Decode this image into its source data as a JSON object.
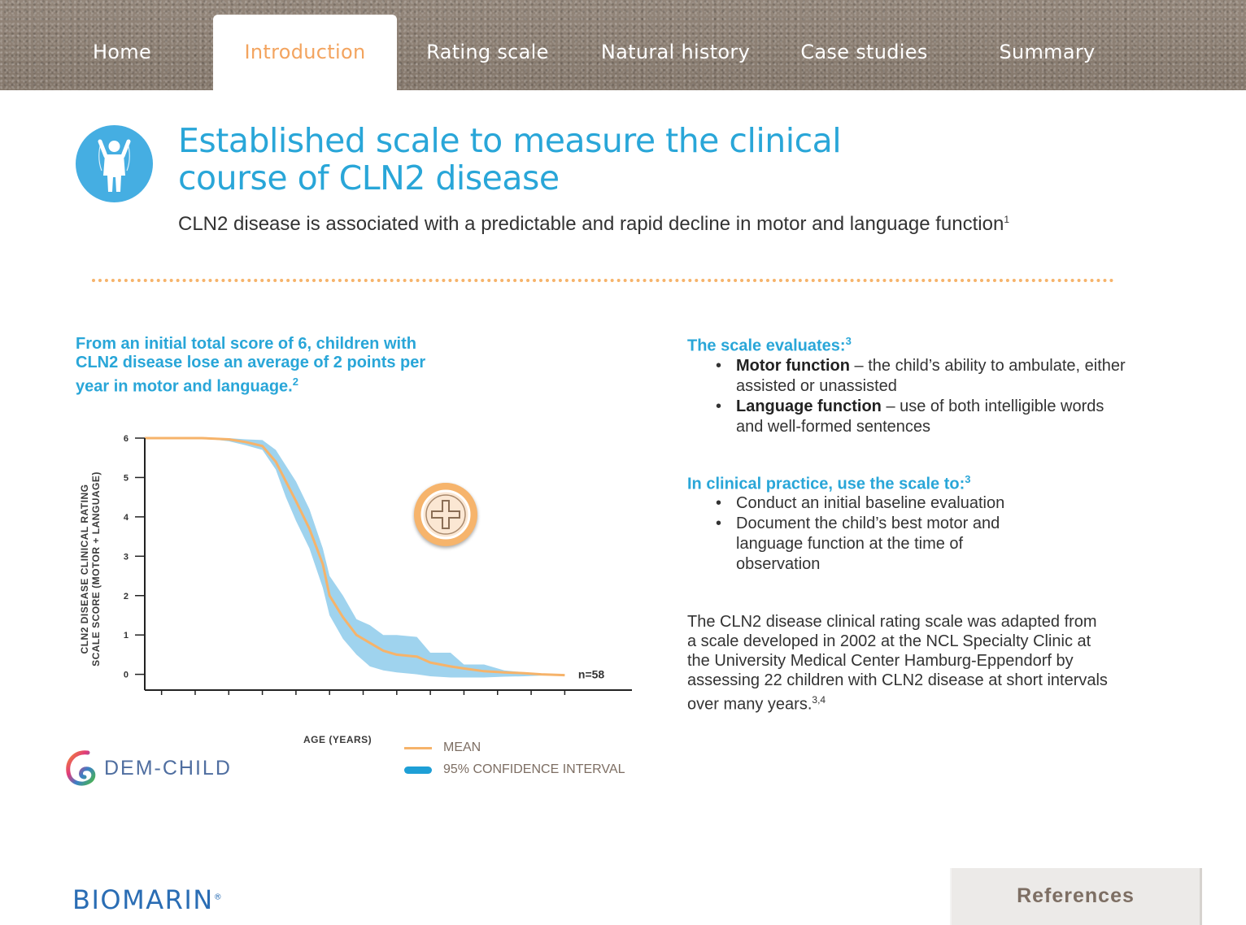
{
  "nav": {
    "tabs": [
      {
        "label": "Home",
        "active": false
      },
      {
        "label": "Introduction",
        "active": true
      },
      {
        "label": "Rating scale",
        "active": false
      },
      {
        "label": "Natural history",
        "active": false
      },
      {
        "label": "Case studies",
        "active": false
      },
      {
        "label": "Summary",
        "active": false
      }
    ]
  },
  "header": {
    "title": "Established scale to measure the clinical course of CLN2 disease",
    "subtitle": "CLN2 disease is associated with a predictable and rapid decline in motor and language function",
    "subtitle_ref": "1"
  },
  "left": {
    "lead": "From an initial total score of 6, children with CLN2 disease lose an average of 2 points per year in motor and language.",
    "lead_ref": "2",
    "logo_text": "DEM-CHILD"
  },
  "chart_data": {
    "type": "line",
    "ylabel_line1": "CLN2 DISEASE CLINICAL RATING",
    "ylabel_line2": "SCALE SCORE (MOTOR + LANGUAGE)",
    "xlabel": "AGE (YEARS)",
    "x_ticks": [
      "0",
      "1",
      "2",
      "3",
      "4",
      "5",
      "6",
      "7",
      "8",
      "9",
      "10",
      "11",
      "12"
    ],
    "y_ticks": [
      "0",
      "1",
      "2",
      "3",
      "4",
      "5",
      "6"
    ],
    "xlim": [
      -0.5,
      14
    ],
    "ylim": [
      -0.4,
      6
    ],
    "annotation": "n=58",
    "legend": {
      "mean": "MEAN",
      "ci": "95% CONFIDENCE INTERVAL"
    },
    "series": [
      {
        "name": "MEAN",
        "x": [
          -0.5,
          1.2,
          2.0,
          2.5,
          3.0,
          3.4,
          3.7,
          4.0,
          4.4,
          4.8,
          5.0,
          5.4,
          5.8,
          6.2,
          6.6,
          7.0,
          7.6,
          8.0,
          8.6,
          9.0,
          9.6,
          10.2,
          10.8,
          11.3,
          12.0
        ],
        "y": [
          6.0,
          6.0,
          5.97,
          5.9,
          5.8,
          5.4,
          4.9,
          4.4,
          3.7,
          2.8,
          2.0,
          1.45,
          1.0,
          0.8,
          0.6,
          0.5,
          0.45,
          0.3,
          0.2,
          0.15,
          0.08,
          0.05,
          0.03,
          0.0,
          -0.02
        ]
      },
      {
        "name": "95% CONFIDENCE INTERVAL",
        "x": [
          -0.5,
          1.2,
          2.0,
          2.5,
          3.0,
          3.4,
          3.7,
          4.0,
          4.4,
          4.8,
          5.0,
          5.4,
          5.8,
          6.2,
          6.6,
          7.0,
          7.6,
          8.0,
          8.6,
          9.0,
          9.6,
          10.2,
          10.8,
          11.3,
          12.0
        ],
        "upper": [
          6.0,
          6.0,
          6.0,
          5.97,
          5.95,
          5.7,
          5.3,
          4.9,
          4.2,
          3.2,
          2.5,
          2.0,
          1.4,
          1.25,
          1.0,
          1.0,
          0.95,
          0.55,
          0.55,
          0.25,
          0.25,
          0.1,
          0.05,
          0.0,
          -0.02
        ],
        "lower": [
          6.0,
          6.0,
          5.92,
          5.82,
          5.7,
          5.2,
          4.5,
          3.9,
          3.2,
          2.2,
          1.5,
          0.9,
          0.5,
          0.2,
          0.1,
          0.05,
          0.0,
          -0.05,
          -0.08,
          -0.08,
          -0.08,
          -0.06,
          -0.05,
          -0.03,
          -0.03
        ]
      }
    ]
  },
  "right": {
    "evaluates": {
      "heading": "The scale evaluates:",
      "ref": "3",
      "items": [
        {
          "bold": "Motor function",
          "text": " – the child’s ability to ambulate, either assisted or unassisted"
        },
        {
          "bold": "Language function",
          "text": " – use of both intelligible words",
          "text2": "and well-formed sentences"
        }
      ]
    },
    "practice": {
      "heading": "In clinical practice, use the scale to:",
      "ref": "3",
      "items": [
        "Conduct an initial baseline evaluation",
        "Document the child’s best motor and language function at the time of observation"
      ]
    },
    "adapted_text": "The CLN2 disease clinical rating scale was adapted from a scale developed in 2002 at the NCL Specialty Clinic at the University Medical Center Hamburg-Eppendorf by assessing 22 children with CLN2 disease at short intervals over many years.",
    "adapted_ref": "3,4"
  },
  "footer": {
    "brand": "BIOMARIN",
    "brand_mark": "®",
    "references_label": "References"
  },
  "colors": {
    "accent_blue": "#29a6d8",
    "accent_orange": "#f3a45f",
    "ci_blue": "#9fd3ee",
    "mean_orange": "#f6b36a"
  }
}
